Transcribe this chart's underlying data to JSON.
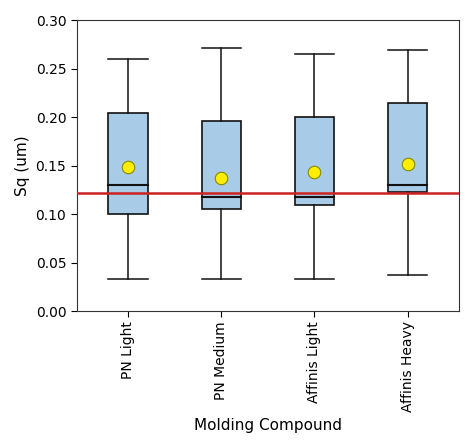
{
  "categories": [
    "PN Light",
    "PN Medium",
    "Affinis Light",
    "Affinis Heavy"
  ],
  "boxes": [
    {
      "whisker_low": 0.033,
      "q1": 0.1,
      "median": 0.13,
      "q3": 0.205,
      "whisker_high": 0.26,
      "mean": 0.149
    },
    {
      "whisker_low": 0.033,
      "q1": 0.105,
      "median": 0.118,
      "q3": 0.196,
      "whisker_high": 0.272,
      "mean": 0.137
    },
    {
      "whisker_low": 0.033,
      "q1": 0.11,
      "median": 0.118,
      "q3": 0.2,
      "whisker_high": 0.265,
      "mean": 0.144
    },
    {
      "whisker_low": 0.037,
      "q1": 0.123,
      "median": 0.13,
      "q3": 0.215,
      "whisker_high": 0.27,
      "mean": 0.152
    }
  ],
  "hline_y": 0.122,
  "hline_color": "#cc2222",
  "box_facecolor": "#a8cce8",
  "box_edgecolor": "#111111",
  "median_linecolor": "#111111",
  "mean_color": "#ffee00",
  "mean_edgecolor": "#888800",
  "whisker_color": "#111111",
  "cap_color": "#111111",
  "ylabel": "Sq (um)",
  "xlabel": "Molding Compound",
  "ylim": [
    0.0,
    0.3
  ],
  "yticks": [
    0.0,
    0.05,
    0.1,
    0.15,
    0.2,
    0.25,
    0.3
  ],
  "figsize": [
    4.74,
    4.48
  ],
  "dpi": 100
}
